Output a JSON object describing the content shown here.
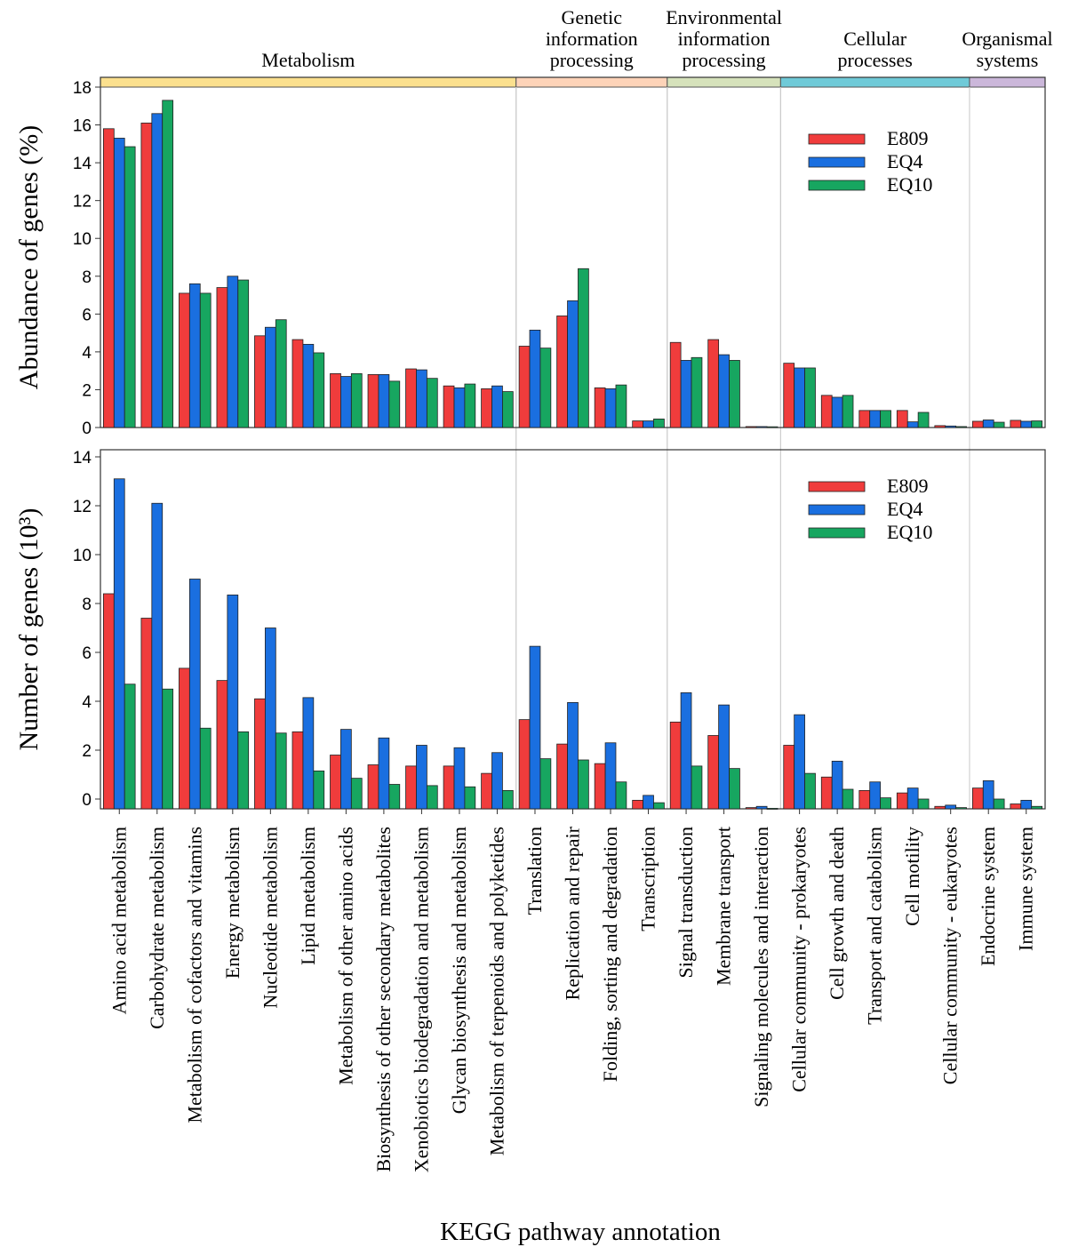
{
  "chart_data": {
    "type": "bar",
    "xlabel": "KEGG pathway annotation",
    "categories": [
      "Amino acid metabolism",
      "Carbohydrate metabolism",
      "Metabolism of cofactors and vitamins",
      "Energy metabolism",
      "Nucleotide metabolism",
      "Lipid metabolism",
      "Metabolism of other amino acids",
      "Biosynthesis of other secondary metabolites",
      "Xenobiotics biodegradation and metabolism",
      "Glycan biosynthesis and metabolism",
      "Metabolism of terpenoids and polyketides",
      "Translation",
      "Replication and repair",
      "Folding, sorting and degradation",
      "Transcription",
      "Signal transduction",
      "Membrane transport",
      "Signaling molecules and interaction",
      "Cellular community - prokaryotes",
      "Cell growth and death",
      "Transport and catabolism",
      "Cell motility",
      "Cellular community - eukaryotes",
      "Endocrine system",
      "Immune system"
    ],
    "groups": [
      {
        "label": [
          "Metabolism"
        ],
        "count": 11,
        "color": "#fbe08e"
      },
      {
        "label": [
          "Genetic",
          "information",
          "processing"
        ],
        "count": 4,
        "color": "#fdd3b8"
      },
      {
        "label": [
          "Environmental",
          "information",
          "processing"
        ],
        "count": 3,
        "color": "#d6e2bb"
      },
      {
        "label": [
          "Cellular",
          "processes"
        ],
        "count": 5,
        "color": "#6fcad8"
      },
      {
        "label": [
          "Organismal",
          "systems"
        ],
        "count": 2,
        "color": "#cbb7da"
      }
    ],
    "series_colors": {
      "E809": "#f03c3c",
      "EQ4": "#1a6fe0",
      "EQ10": "#17a660"
    },
    "panels": [
      {
        "ylabel": "Abundance of genes (%)",
        "ylim": [
          0,
          18
        ],
        "yticks": [
          0,
          2,
          4,
          6,
          8,
          10,
          12,
          14,
          16,
          18
        ],
        "legend": "top-right",
        "series": [
          {
            "name": "E809",
            "values": [
              15.8,
              16.1,
              7.1,
              7.4,
              4.85,
              4.65,
              2.85,
              2.8,
              3.1,
              2.2,
              2.05,
              4.3,
              5.9,
              2.1,
              0.35,
              4.5,
              4.65,
              0.05,
              3.4,
              1.7,
              0.9,
              0.9,
              0.1,
              0.33,
              0.38
            ]
          },
          {
            "name": "EQ4",
            "values": [
              15.3,
              16.6,
              7.6,
              8.0,
              5.3,
              4.4,
              2.7,
              2.8,
              3.05,
              2.1,
              2.2,
              5.15,
              6.7,
              2.05,
              0.35,
              3.55,
              3.85,
              0.05,
              3.15,
              1.6,
              0.9,
              0.3,
              0.08,
              0.4,
              0.33
            ]
          },
          {
            "name": "EQ10",
            "values": [
              14.85,
              17.3,
              7.1,
              7.8,
              5.7,
              3.95,
              2.85,
              2.45,
              2.6,
              2.3,
              1.9,
              4.2,
              8.4,
              2.25,
              0.45,
              3.7,
              3.55,
              0.04,
              3.15,
              1.7,
              0.9,
              0.8,
              0.05,
              0.28,
              0.35
            ]
          }
        ]
      },
      {
        "ylabel": "Number of genes (10³)",
        "ylim": [
          -0.4,
          14.4
        ],
        "yticks": [
          0,
          2,
          4,
          6,
          8,
          10,
          12,
          14
        ],
        "legend": "top-right",
        "series": [
          {
            "name": "E809",
            "values": [
              8.4,
              7.4,
              5.35,
              4.85,
              4.1,
              2.75,
              1.8,
              1.4,
              1.35,
              1.35,
              1.05,
              3.25,
              2.25,
              1.45,
              -0.05,
              3.15,
              2.6,
              -0.35,
              2.2,
              0.9,
              0.35,
              0.25,
              -0.3,
              0.45,
              -0.2
            ]
          },
          {
            "name": "EQ4",
            "values": [
              13.1,
              12.1,
              9.0,
              8.35,
              7.0,
              4.15,
              2.85,
              2.5,
              2.2,
              2.1,
              1.9,
              6.25,
              3.95,
              2.3,
              0.15,
              4.35,
              3.85,
              -0.3,
              3.45,
              1.55,
              0.7,
              0.45,
              -0.25,
              0.75,
              -0.05
            ]
          },
          {
            "name": "EQ10",
            "values": [
              4.7,
              4.5,
              2.9,
              2.75,
              2.7,
              1.15,
              0.85,
              0.6,
              0.55,
              0.5,
              0.35,
              1.65,
              1.6,
              0.7,
              -0.15,
              1.35,
              1.25,
              -0.38,
              1.05,
              0.4,
              0.05,
              0.0,
              -0.35,
              0.0,
              -0.3
            ]
          }
        ]
      }
    ]
  }
}
